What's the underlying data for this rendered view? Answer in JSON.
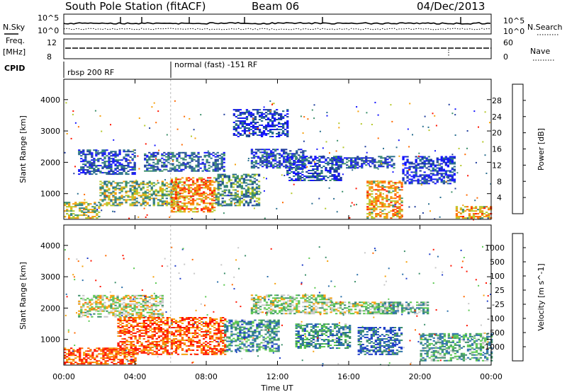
{
  "header": {
    "station": "South Pole Station (fitACF)",
    "beam": "Beam 06",
    "date": "04/Dec/2013"
  },
  "strips": {
    "nsky_label": "N.Sky",
    "nsky_ticks": [
      "10^5",
      "10^0"
    ],
    "nsearch_label": "N.Search",
    "nsearch_ticks": [
      "10^5",
      "10^0"
    ],
    "freq_label": "Freq.",
    "freq_unit": "[MHz]",
    "freq_ticks": [
      "12",
      "8"
    ],
    "nave_label": "Nave",
    "nave_ticks": [
      "60",
      "0"
    ],
    "cpid_label": "CPID",
    "cpid_segments": [
      {
        "start_hour": 0,
        "end_hour": 6,
        "text": "rbsp 200 RF"
      },
      {
        "start_hour": 6,
        "end_hour": 24,
        "text": "normal (fast) -151 RF"
      }
    ]
  },
  "chart_data": [
    {
      "type": "heatmap",
      "name": "power",
      "xlabel": "",
      "ylabel": "Slant Range [km]",
      "xlim": [
        0,
        24
      ],
      "ylim": [
        180,
        4650
      ],
      "y_ticks": [
        1000,
        2000,
        3000,
        4000
      ],
      "x_ticks": [
        0,
        4,
        8,
        12,
        16,
        20,
        24
      ],
      "colorbar": {
        "label": "Power [dB]",
        "range": [
          0,
          32
        ],
        "ticks": [
          "4",
          "8",
          "12",
          "16",
          "20",
          "24",
          "28"
        ],
        "colors": [
          "#1414ff",
          "#1e3c9c",
          "#2a6f8f",
          "#3c8f6a",
          "#b4c82a",
          "#f5a00a",
          "#ff6a00",
          "#ff1400"
        ]
      },
      "echo_regions": [
        {
          "t0": 0.0,
          "t1": 2.0,
          "r0": 200,
          "r1": 700,
          "level": 0.55
        },
        {
          "t0": 0.8,
          "t1": 4.0,
          "r0": 1600,
          "r1": 2400,
          "level": 0.2
        },
        {
          "t0": 2.0,
          "t1": 6.5,
          "r0": 600,
          "r1": 1400,
          "level": 0.5
        },
        {
          "t0": 4.5,
          "t1": 9.0,
          "r0": 1700,
          "r1": 2300,
          "level": 0.25
        },
        {
          "t0": 6.0,
          "t1": 8.5,
          "r0": 400,
          "r1": 1500,
          "level": 0.75
        },
        {
          "t0": 8.5,
          "t1": 11.0,
          "r0": 600,
          "r1": 1600,
          "level": 0.4
        },
        {
          "t0": 9.5,
          "t1": 12.5,
          "r0": 2800,
          "r1": 3700,
          "level": 0.15
        },
        {
          "t0": 10.5,
          "t1": 13.5,
          "r0": 1800,
          "r1": 2400,
          "level": 0.2
        },
        {
          "t0": 12.5,
          "t1": 15.5,
          "r0": 1400,
          "r1": 2200,
          "level": 0.2
        },
        {
          "t0": 15.0,
          "t1": 18.5,
          "r0": 1800,
          "r1": 2200,
          "level": 0.25
        },
        {
          "t0": 17.0,
          "t1": 19.0,
          "r0": 200,
          "r1": 1400,
          "level": 0.7
        },
        {
          "t0": 19.0,
          "t1": 22.0,
          "r0": 1300,
          "r1": 2200,
          "level": 0.15
        },
        {
          "t0": 22.0,
          "t1": 24.0,
          "r0": 200,
          "r1": 600,
          "level": 0.7
        }
      ]
    },
    {
      "type": "heatmap",
      "name": "velocity",
      "xlabel": "Time UT",
      "ylabel": "Slant Range [km]",
      "xlim": [
        0,
        24
      ],
      "ylim": [
        180,
        4650
      ],
      "y_ticks": [
        1000,
        2000,
        3000,
        4000
      ],
      "x_ticks": [
        0,
        4,
        8,
        12,
        16,
        20,
        24
      ],
      "x_tick_labels": [
        "00:00",
        "04:00",
        "08:00",
        "12:00",
        "16:00",
        "20:00",
        "00:00"
      ],
      "colorbar": {
        "label": "Velocity [m s^-1]",
        "ticks": [
          "1000",
          "500",
          "100",
          "25",
          "-25",
          "-100",
          "-500",
          "-1000"
        ],
        "colors": [
          "#1e3cc8",
          "#2a6faa",
          "#3c8f6a",
          "#5ac850",
          "#c8c8c8",
          "#f5a00a",
          "#ff6a00",
          "#ff1400"
        ]
      },
      "echo_regions": [
        {
          "t0": 0.0,
          "t1": 4.0,
          "r0": 200,
          "r1": 700,
          "level": 0.85
        },
        {
          "t0": 0.8,
          "t1": 5.5,
          "r0": 1700,
          "r1": 2400,
          "level": 0.55
        },
        {
          "t0": 3.0,
          "t1": 9.0,
          "r0": 500,
          "r1": 1700,
          "level": 0.85
        },
        {
          "t0": 9.0,
          "t1": 12.0,
          "r0": 600,
          "r1": 1600,
          "level": 0.3
        },
        {
          "t0": 10.5,
          "t1": 15.0,
          "r0": 1800,
          "r1": 2400,
          "level": 0.5
        },
        {
          "t0": 13.0,
          "t1": 16.0,
          "r0": 700,
          "r1": 1500,
          "level": 0.3
        },
        {
          "t0": 15.0,
          "t1": 18.5,
          "r0": 1800,
          "r1": 2200,
          "level": 0.5
        },
        {
          "t0": 16.5,
          "t1": 19.0,
          "r0": 500,
          "r1": 1400,
          "level": 0.15
        },
        {
          "t0": 17.5,
          "t1": 20.5,
          "r0": 1800,
          "r1": 2200,
          "level": 0.4
        },
        {
          "t0": 20.0,
          "t1": 24.0,
          "r0": 300,
          "r1": 1200,
          "level": 0.35
        }
      ]
    }
  ]
}
